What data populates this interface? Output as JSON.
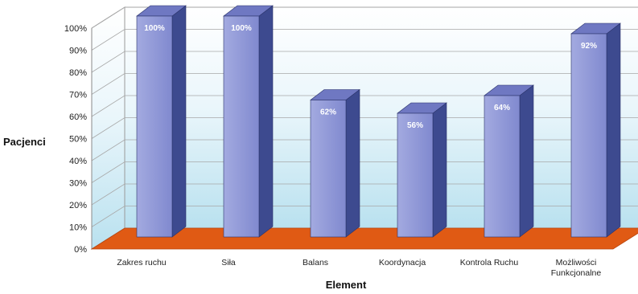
{
  "chart_data": {
    "type": "bar",
    "title": "",
    "xlabel": "Element",
    "ylabel": "Pacjenci",
    "categories": [
      [
        "Zakres ruchu"
      ],
      [
        "Siła"
      ],
      [
        "Balans"
      ],
      [
        "Koordynacja"
      ],
      [
        "Kontrola Ruchu"
      ],
      [
        "Możliwości",
        "Funkcjonalne"
      ]
    ],
    "values": [
      100,
      100,
      62,
      56,
      64,
      92
    ],
    "data_labels": [
      "100%",
      "100%",
      "62%",
      "56%",
      "64%",
      "92%"
    ],
    "ylim": [
      0,
      100
    ],
    "yticks": [
      "0%",
      "10%",
      "20%",
      "30%",
      "40%",
      "50%",
      "60%",
      "70%",
      "80%",
      "90%",
      "100%"
    ],
    "grid": true,
    "three_d": true,
    "legend": "none",
    "colors": {
      "bar_front": "#8f97d6",
      "bar_side": "#3d4a8f",
      "bar_top": "#6f78c2",
      "floor": "#e05a14",
      "back_wall_top": "#ffffff",
      "back_wall_bottom": "#b9e1ef"
    }
  }
}
